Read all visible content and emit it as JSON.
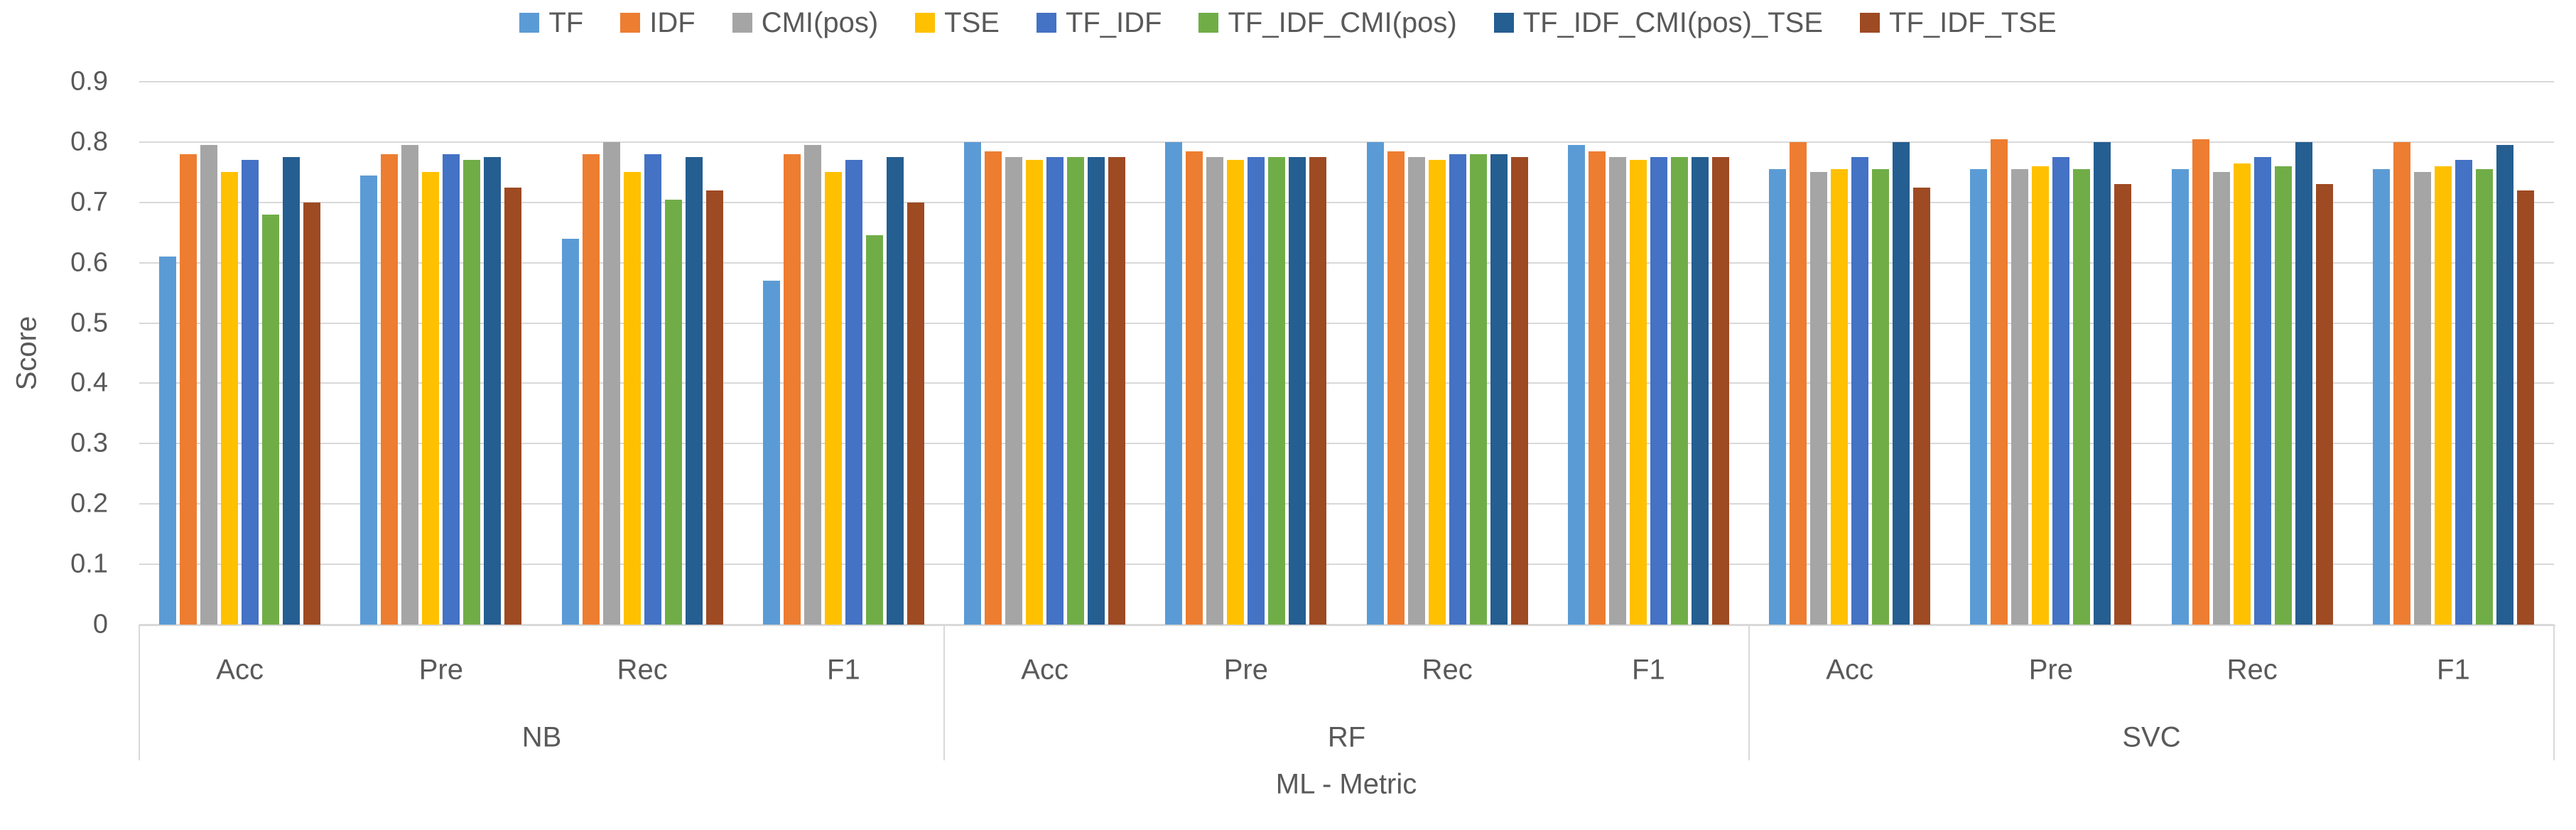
{
  "chart_data": {
    "type": "bar",
    "title": "",
    "xlabel": "ML - Metric",
    "ylabel": "Score",
    "ylim": [
      0,
      0.9
    ],
    "ytick_step": 0.1,
    "ytick_labels": [
      "0",
      "0.1",
      "0.2",
      "0.3",
      "0.4",
      "0.5",
      "0.6",
      "0.7",
      "0.8",
      "0.9"
    ],
    "grid": true,
    "legend_position": "top",
    "group_labels": [
      "NB",
      "RF",
      "SVC"
    ],
    "metric_labels": [
      "Acc",
      "Pre",
      "Rec",
      "F1"
    ],
    "categories": [
      "NB-Acc",
      "NB-Pre",
      "NB-Rec",
      "NB-F1",
      "RF-Acc",
      "RF-Pre",
      "RF-Rec",
      "RF-F1",
      "SVC-Acc",
      "SVC-Pre",
      "SVC-Rec",
      "SVC-F1"
    ],
    "series": [
      {
        "name": "TF",
        "color": "#5B9BD5",
        "values": [
          0.61,
          0.745,
          0.64,
          0.57,
          0.8,
          0.8,
          0.8,
          0.795,
          0.755,
          0.755,
          0.755,
          0.755
        ]
      },
      {
        "name": "IDF",
        "color": "#ED7D31",
        "values": [
          0.78,
          0.78,
          0.78,
          0.78,
          0.785,
          0.785,
          0.785,
          0.785,
          0.8,
          0.805,
          0.805,
          0.8
        ]
      },
      {
        "name": "CMI(pos)",
        "color": "#A5A5A5",
        "values": [
          0.795,
          0.795,
          0.8,
          0.795,
          0.775,
          0.775,
          0.775,
          0.775,
          0.75,
          0.755,
          0.75,
          0.75
        ]
      },
      {
        "name": "TSE",
        "color": "#FFC000",
        "values": [
          0.75,
          0.75,
          0.75,
          0.75,
          0.77,
          0.77,
          0.77,
          0.77,
          0.755,
          0.76,
          0.765,
          0.76
        ]
      },
      {
        "name": "TF_IDF",
        "color": "#4472C4",
        "values": [
          0.77,
          0.78,
          0.78,
          0.77,
          0.775,
          0.775,
          0.78,
          0.775,
          0.775,
          0.775,
          0.775,
          0.77
        ]
      },
      {
        "name": "TF_IDF_CMI(pos)",
        "color": "#70AD47",
        "values": [
          0.68,
          0.77,
          0.705,
          0.645,
          0.775,
          0.775,
          0.78,
          0.775,
          0.755,
          0.755,
          0.76,
          0.755
        ]
      },
      {
        "name": "TF_IDF_CMI(pos)_TSE",
        "color": "#255E91",
        "values": [
          0.775,
          0.775,
          0.775,
          0.775,
          0.775,
          0.775,
          0.78,
          0.775,
          0.8,
          0.8,
          0.8,
          0.795
        ]
      },
      {
        "name": "TF_IDF_TSE",
        "color": "#9E4A23",
        "values": [
          0.7,
          0.725,
          0.72,
          0.7,
          0.775,
          0.775,
          0.775,
          0.775,
          0.725,
          0.73,
          0.73,
          0.72
        ]
      }
    ]
  },
  "colors": {
    "text": "#595959",
    "gridline": "#D9D9D9",
    "axis_line": "#D9D9D9",
    "background": "#FFFFFF"
  }
}
